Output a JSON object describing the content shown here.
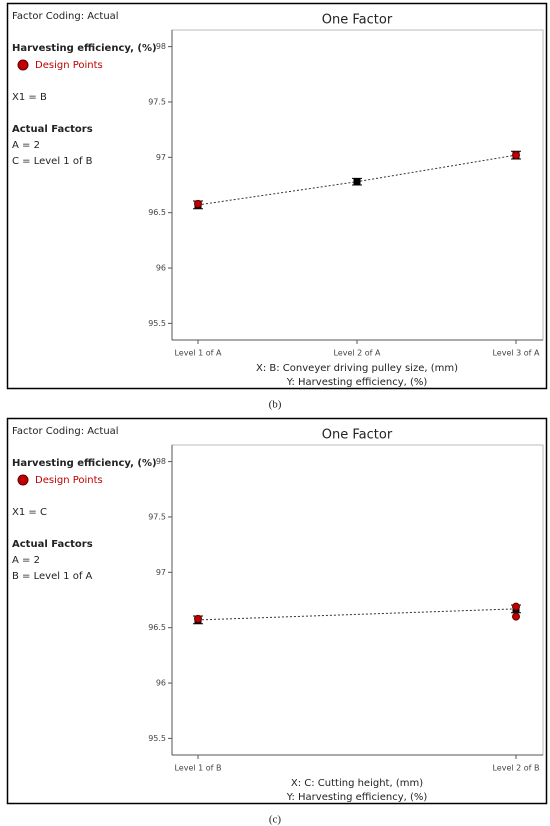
{
  "chart_data": [
    {
      "type": "line",
      "title": "One Factor",
      "factor_coding": "Factor Coding: Actual",
      "response": "Harvesting efficiency,  (%)",
      "x1": "X1 = B",
      "actual_factors_heading": "Actual Factors",
      "actual_factors": [
        "A = 2",
        "C = Level 1 of B"
      ],
      "xlabel": "X: B: Conveyer driving pulley size,  (mm)",
      "ylabel": "Y: Harvesting efficiency,  (%)",
      "caption": "(b)",
      "categories": [
        "Level 1 of A",
        "Level 2 of A",
        "Level 3 of A"
      ],
      "values": [
        96.57,
        96.78,
        97.02
      ],
      "errors": [
        0.035,
        0.03,
        0.035
      ],
      "design_points": {
        "name": "Design Points",
        "color": "#c00000",
        "x": [
          "Level 1 of A",
          "Level 3 of A"
        ],
        "values": [
          96.58,
          97.02
        ]
      },
      "ylim": [
        95.35,
        98.15
      ],
      "yticks": [
        95.5,
        96,
        96.5,
        97,
        97.5,
        98
      ]
    },
    {
      "type": "line",
      "title": "One Factor",
      "factor_coding": "Factor Coding: Actual",
      "response": "Harvesting efficiency,  (%)",
      "x1": "X1 = C",
      "actual_factors_heading": "Actual Factors",
      "actual_factors": [
        "A = 2",
        "B = Level 1 of A"
      ],
      "xlabel": "X: C: Cutting height,  (mm)",
      "ylabel": "Y: Harvesting efficiency,  (%)",
      "caption": "(c)",
      "categories": [
        "Level 1 of B",
        "Level 2 of B"
      ],
      "values": [
        96.57,
        96.67
      ],
      "errors": [
        0.035,
        0.035
      ],
      "design_points": {
        "name": "Design Points",
        "color": "#c00000",
        "x": [
          "Level 1 of B",
          "Level 2 of B",
          "Level 2 of B"
        ],
        "values": [
          96.58,
          96.69,
          96.6
        ]
      },
      "ylim": [
        95.35,
        98.15
      ],
      "yticks": [
        95.5,
        96,
        96.5,
        97,
        97.5,
        98
      ]
    }
  ]
}
